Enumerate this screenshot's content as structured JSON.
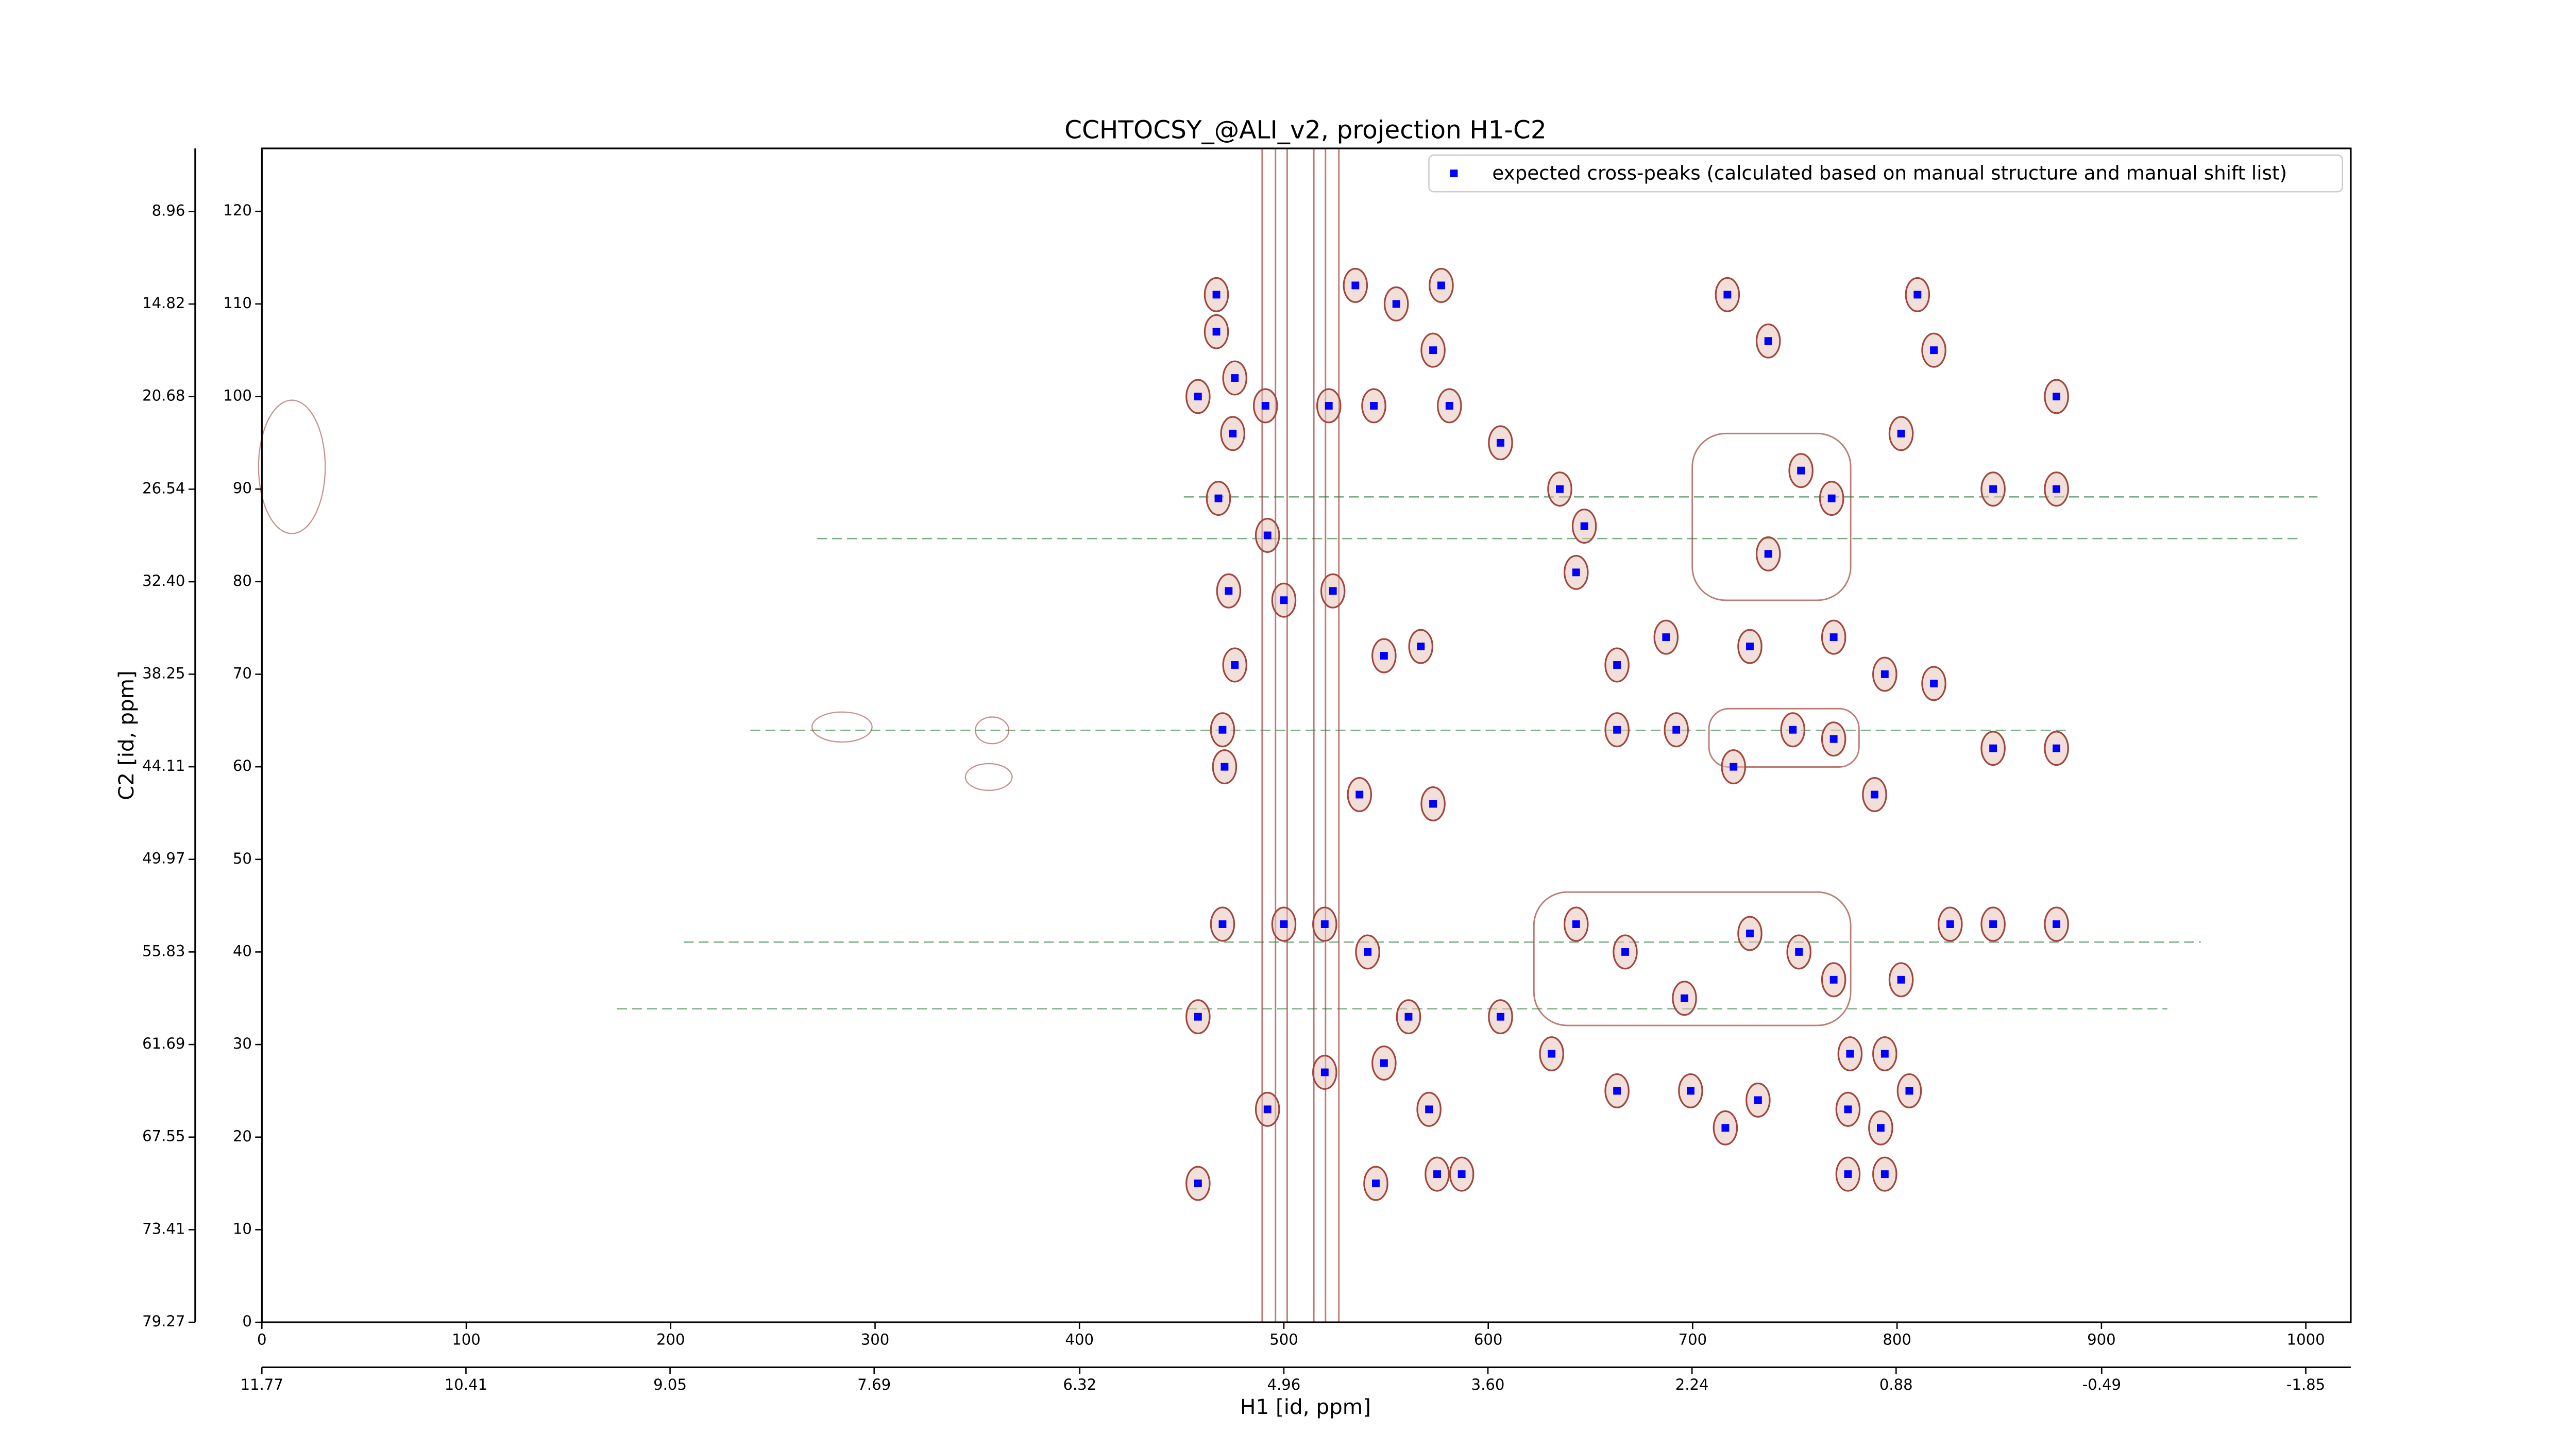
{
  "chart_data": {
    "type": "scatter",
    "title": "CCHTOCSY_@ALI_v2, projection H1-C2",
    "x_label": "H1 [id, ppm]",
    "y_label": "C2 [id, ppm]",
    "xlim": [
      0,
      1022
    ],
    "xticks": [
      0,
      100,
      200,
      300,
      400,
      500,
      600,
      700,
      800,
      900,
      1000
    ],
    "ylim": [
      0,
      126.8
    ],
    "yticks": [
      0,
      10,
      20,
      30,
      40,
      50,
      60,
      70,
      80,
      90,
      100,
      110,
      120
    ],
    "x2lim": [
      11.77,
      -2.15
    ],
    "x2ticks": [
      11.77,
      10.41,
      9.05,
      7.69,
      6.32,
      4.96,
      {
        "value": 3.6,
        "label": "3.60"
      },
      2.24,
      0.88,
      -0.49,
      -1.85
    ],
    "y2lim": [
      79.27,
      4.97
    ],
    "y2ticks": [
      79.27,
      73.41,
      67.55,
      61.69,
      55.83,
      49.97,
      44.11,
      38.25,
      {
        "value": 32.4,
        "label": "32.40"
      },
      26.54,
      20.68,
      14.82,
      8.96
    ],
    "legend": "upper right",
    "series": [
      {
        "name": "expected cross-peaks (calculated based on manual structure and manual shift list)",
        "color": "#0000ff",
        "x": [
          467,
          467,
          476,
          458,
          475,
          468,
          492,
          473,
          476,
          470,
          471,
          491,
          522,
          535,
          544,
          555,
          577,
          573,
          581,
          606,
          635,
          647,
          643,
          717,
          737,
          753,
          768,
          737,
          810,
          818,
          802,
          847,
          878,
          878,
          749,
          769,
          720,
          663,
          847,
          878,
          573,
          537,
          470,
          500,
          520,
          541,
          561,
          549,
          571,
          545,
          575,
          587,
          458,
          458,
          606,
          643,
          667,
          696,
          728,
          752,
          769,
          802,
          826,
          847,
          878,
          777,
          794,
          806,
          776,
          792,
          776,
          794,
          716,
          732,
          699,
          663,
          631,
          520,
          492,
          500,
          524,
          549,
          567,
          663,
          687,
          728,
          769,
          794,
          818,
          692,
          789
        ],
        "y": [
          111,
          107,
          102,
          100,
          96,
          89,
          85,
          79,
          71,
          64,
          60,
          99,
          99,
          112,
          99,
          110,
          112,
          105,
          99,
          95,
          90,
          86,
          81,
          111,
          106,
          92,
          89,
          83,
          111,
          105,
          96,
          90,
          100,
          90,
          64,
          63,
          60,
          64,
          62,
          62,
          56,
          57,
          43,
          43,
          43,
          40,
          33,
          28,
          23,
          15,
          16,
          16,
          15,
          33,
          33,
          43,
          40,
          35,
          42,
          40,
          37,
          37,
          43,
          43,
          43,
          29,
          29,
          25,
          23,
          21,
          16,
          16,
          21,
          24,
          25,
          25,
          29,
          27,
          23,
          78,
          79,
          72,
          73,
          71,
          74,
          73,
          74,
          70,
          69,
          64,
          57
        ]
      }
    ]
  }
}
